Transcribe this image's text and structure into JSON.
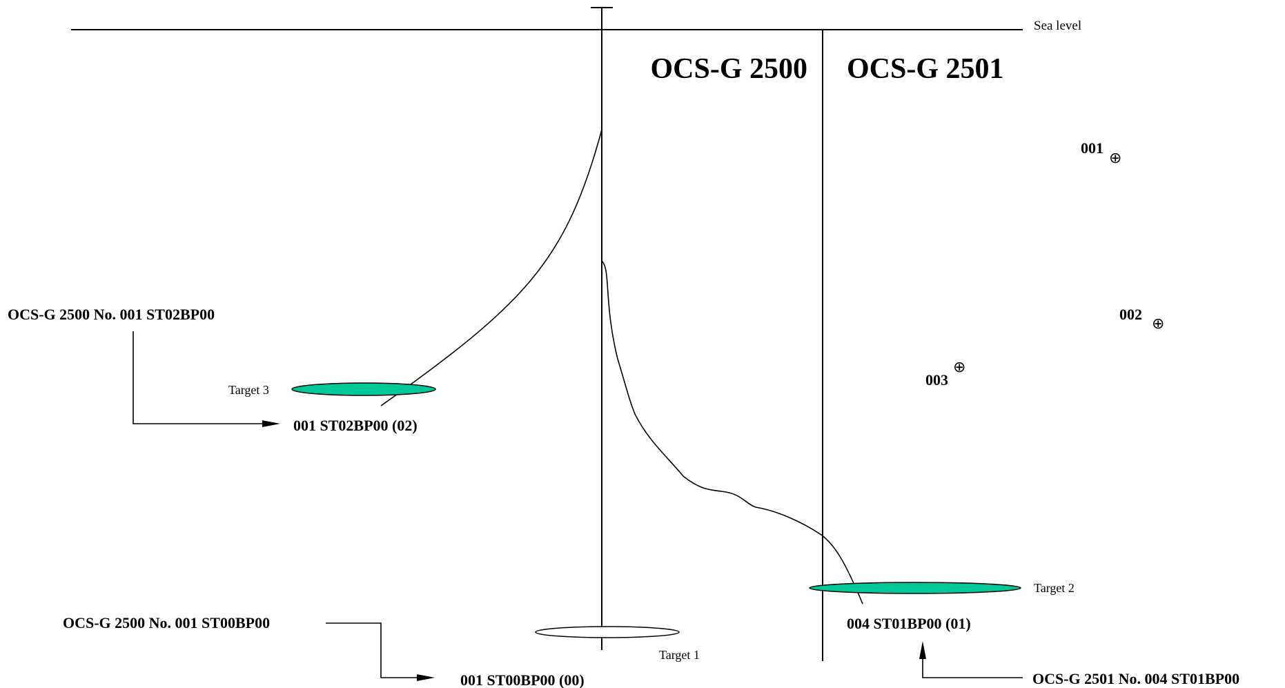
{
  "sea_level_label": "Sea level",
  "blocks": {
    "left": "OCS-G 2500",
    "right": "OCS-G 2501"
  },
  "callouts": {
    "st02_full": "OCS-G 2500 No. 001 ST02BP00",
    "st02_short": "001 ST02BP00 (02)",
    "st00_full": "OCS-G 2500 No. 001 ST00BP00",
    "st00_short": "001 ST00BP00 (00)",
    "st01_full": "OCS-G 2501 No. 004 ST01BP00",
    "st01_short": "004 ST01BP00 (01)"
  },
  "targets": {
    "t1": "Target 1",
    "t2": "Target 2",
    "t3": "Target  3"
  },
  "wells": {
    "w001": "001",
    "w002": "002",
    "w003": "003",
    "symbol": "⊕"
  },
  "colors": {
    "target_fill": "#00C896",
    "line": "#000000",
    "background": "#FFFFFF"
  }
}
